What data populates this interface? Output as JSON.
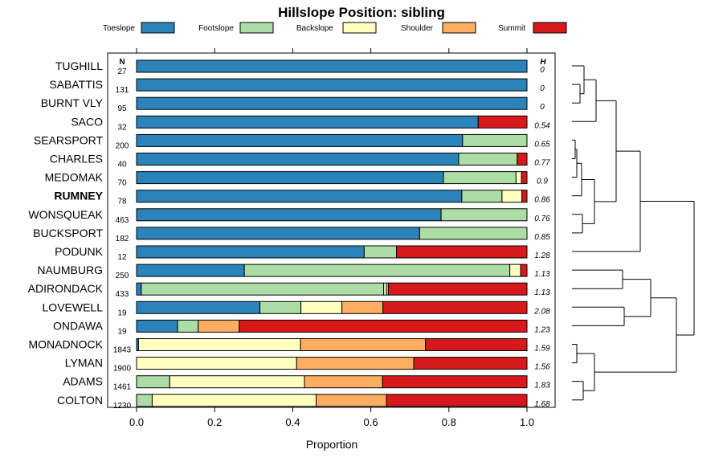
{
  "chart_data": {
    "type": "bar",
    "orientation": "horizontal",
    "stacked": true,
    "title": "Hillslope Position: sibling",
    "xlabel": "Proportion",
    "xlim": [
      0,
      1
    ],
    "x_ticks": [
      "0.0",
      "0.2",
      "0.4",
      "0.6",
      "0.8",
      "1.0"
    ],
    "n_header": "N",
    "h_header": "H",
    "legend": [
      {
        "name": "Toeslope",
        "color": "#2B83BA"
      },
      {
        "name": "Footslope",
        "color": "#ABDDA4"
      },
      {
        "name": "Backslope",
        "color": "#FFFFBF"
      },
      {
        "name": "Shoulder",
        "color": "#FDAE61"
      },
      {
        "name": "Summit",
        "color": "#D7191C"
      }
    ],
    "highlight": "RUMNEY",
    "rows": [
      {
        "name": "TUGHILL",
        "n": "27",
        "h": "0",
        "values": [
          1.0,
          0,
          0,
          0,
          0
        ]
      },
      {
        "name": "SABATTIS",
        "n": "131",
        "h": "0",
        "values": [
          1.0,
          0,
          0,
          0,
          0
        ]
      },
      {
        "name": "BURNT VLY",
        "n": "95",
        "h": "0",
        "values": [
          1.0,
          0,
          0,
          0,
          0
        ]
      },
      {
        "name": "SACO",
        "n": "32",
        "h": "0.54",
        "values": [
          0.875,
          0,
          0,
          0,
          0.125
        ]
      },
      {
        "name": "SEARSPORT",
        "n": "200",
        "h": "0.65",
        "values": [
          0.835,
          0.165,
          0,
          0,
          0
        ]
      },
      {
        "name": "CHARLES",
        "n": "40",
        "h": "0.77",
        "values": [
          0.825,
          0.15,
          0,
          0,
          0.025
        ]
      },
      {
        "name": "MEDOMAK",
        "n": "70",
        "h": "0.9",
        "values": [
          0.786,
          0.186,
          0.014,
          0,
          0.014
        ]
      },
      {
        "name": "RUMNEY",
        "n": "78",
        "h": "0.86",
        "values": [
          0.833,
          0.103,
          0.051,
          0,
          0.013
        ]
      },
      {
        "name": "WONSQUEAK",
        "n": "463",
        "h": "0.76",
        "values": [
          0.78,
          0.22,
          0,
          0,
          0
        ]
      },
      {
        "name": "BUCKSPORT",
        "n": "182",
        "h": "0.85",
        "values": [
          0.725,
          0.275,
          0,
          0,
          0
        ]
      },
      {
        "name": "PODUNK",
        "n": "12",
        "h": "1.28",
        "values": [
          0.583,
          0.083,
          0,
          0,
          0.334
        ]
      },
      {
        "name": "NAUMBURG",
        "n": "250",
        "h": "1.13",
        "values": [
          0.276,
          0.68,
          0.028,
          0,
          0.016
        ]
      },
      {
        "name": "ADIRONDACK",
        "n": "433",
        "h": "1.13",
        "values": [
          0.012,
          0.621,
          0.007,
          0.005,
          0.355
        ]
      },
      {
        "name": "LOVEWELL",
        "n": "19",
        "h": "2.08",
        "values": [
          0.316,
          0.105,
          0.105,
          0.105,
          0.369
        ]
      },
      {
        "name": "ONDAWA",
        "n": "19",
        "h": "1.23",
        "values": [
          0.105,
          0.053,
          0,
          0.105,
          0.737
        ]
      },
      {
        "name": "MONADNOCK",
        "n": "1843",
        "h": "1.59",
        "values": [
          0.005,
          0,
          0.415,
          0.32,
          0.26
        ]
      },
      {
        "name": "LYMAN",
        "n": "1900",
        "h": "1.56",
        "values": [
          0,
          0,
          0.41,
          0.3,
          0.29
        ]
      },
      {
        "name": "ADAMS",
        "n": "1461",
        "h": "1.83",
        "values": [
          0,
          0.085,
          0.345,
          0.2,
          0.37
        ]
      },
      {
        "name": "COLTON",
        "n": "1230",
        "h": "1.68",
        "values": [
          0,
          0.04,
          0.42,
          0.18,
          0.36
        ]
      }
    ]
  }
}
